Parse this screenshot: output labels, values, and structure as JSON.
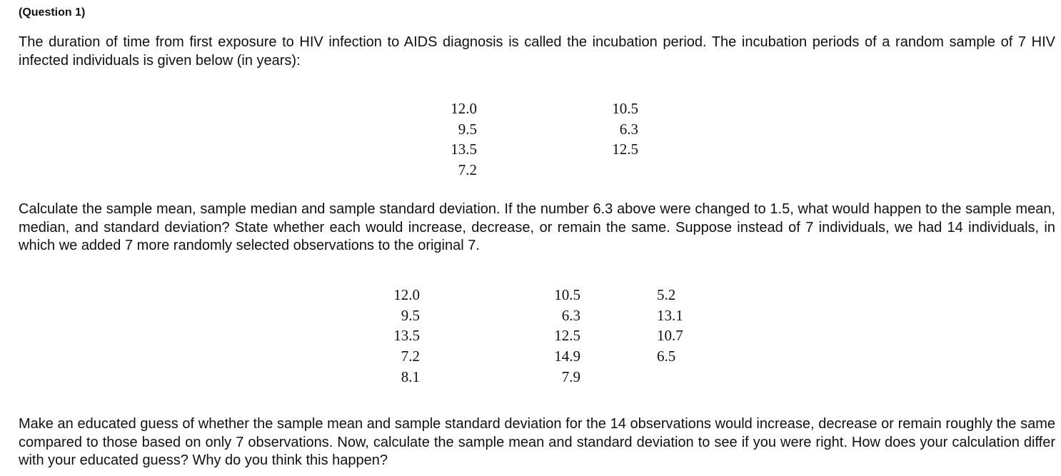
{
  "question_label": "(Question 1)",
  "paragraph_intro": "The duration of time from first exposure to HIV infection to AIDS diagnosis is called the incubation period. The incubation periods of a random sample of 7 HIV infected individuals is given below (in years):",
  "table_7": {
    "columns": [
      [
        "12.0",
        "9.5",
        "13.5",
        "7.2"
      ],
      [
        "10.5",
        "6.3",
        "12.5"
      ]
    ]
  },
  "paragraph_task": "Calculate the sample mean, sample median and sample standard deviation. If the number 6.3 above were changed to 1.5, what would happen to the sample mean, median, and standard deviation? State whether each would increase, decrease, or remain the same. Suppose instead of 7 individuals, we had 14 individuals, in which we added 7 more randomly selected observations to the original 7.",
  "table_14": {
    "columns": [
      [
        "12.0",
        "9.5",
        "13.5",
        "7.2",
        "8.1"
      ],
      [
        "10.5",
        "6.3",
        "12.5",
        "14.9",
        "7.9"
      ],
      [
        "5.2",
        "13.1",
        "10.7",
        "6.5"
      ]
    ]
  },
  "paragraph_guess": "Make an educated guess of whether the sample mean and sample standard deviation for the 14 observations would increase, decrease or remain roughly the same compared to those based on only 7 observations. Now, calculate the sample mean and standard deviation to see if you were right. How does your calculation differ with your educated guess? Why do you think this happen?"
}
